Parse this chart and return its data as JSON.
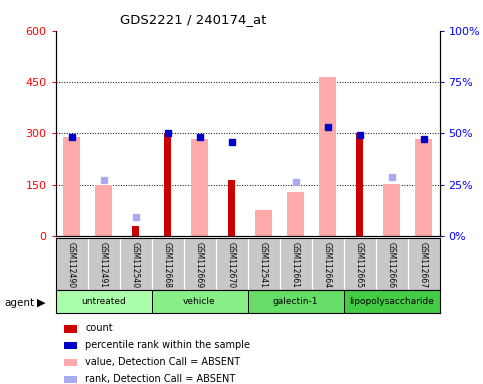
{
  "title": "GDS2221 / 240174_at",
  "samples": [
    "GSM112490",
    "GSM112491",
    "GSM112540",
    "GSM112668",
    "GSM112669",
    "GSM112670",
    "GSM112541",
    "GSM112661",
    "GSM112664",
    "GSM112665",
    "GSM112666",
    "GSM112667"
  ],
  "groups": [
    {
      "label": "untreated",
      "color": "#aaffaa",
      "indices": [
        0,
        1,
        2
      ]
    },
    {
      "label": "vehicle",
      "color": "#88ee88",
      "indices": [
        3,
        4,
        5
      ]
    },
    {
      "label": "galectin-1",
      "color": "#66dd66",
      "indices": [
        6,
        7,
        8
      ]
    },
    {
      "label": "lipopolysaccharide",
      "color": "#44cc44",
      "indices": [
        9,
        10,
        11
      ]
    }
  ],
  "count_values": [
    null,
    null,
    30,
    300,
    null,
    165,
    null,
    null,
    null,
    300,
    null,
    null
  ],
  "percentile_values": [
    290,
    null,
    null,
    300,
    290,
    275,
    null,
    null,
    320,
    295,
    null,
    285
  ],
  "value_absent": [
    290,
    148,
    null,
    null,
    283,
    null,
    75,
    130,
    465,
    null,
    152,
    283
  ],
  "rank_absent": [
    null,
    165,
    55,
    null,
    null,
    null,
    null,
    158,
    null,
    null,
    172,
    null
  ],
  "left_ylim": [
    0,
    600
  ],
  "right_ylim": [
    0,
    100
  ],
  "left_yticks": [
    0,
    150,
    300,
    450,
    600
  ],
  "right_yticks": [
    0,
    25,
    50,
    75,
    100
  ],
  "right_yticklabels": [
    "0%",
    "25%",
    "50%",
    "75%",
    "100%"
  ],
  "count_color": "#cc0000",
  "percentile_color": "#0000cc",
  "value_absent_color": "#ffaaaa",
  "rank_absent_color": "#aaaaee",
  "legend_items": [
    {
      "color": "#cc0000",
      "label": "count"
    },
    {
      "color": "#0000cc",
      "label": "percentile rank within the sample"
    },
    {
      "color": "#ffaaaa",
      "label": "value, Detection Call = ABSENT"
    },
    {
      "color": "#aaaaee",
      "label": "rank, Detection Call = ABSENT"
    }
  ]
}
